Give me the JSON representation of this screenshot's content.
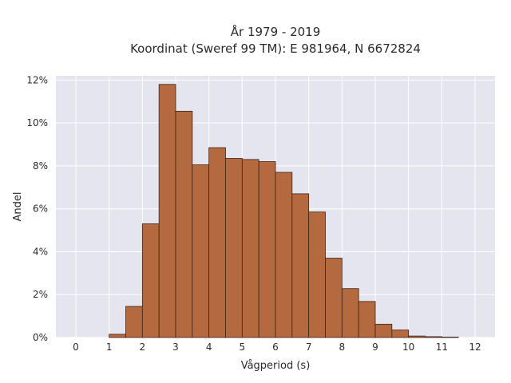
{
  "chart_data": {
    "type": "bar",
    "title": "År 1979 - 2019",
    "subtitle": "Koordinat (Sweref 99 TM): E 981964, N 6672824",
    "xlabel": "Vågperiod (s)",
    "ylabel": "Andel",
    "xlim": [
      -0.6,
      12.6
    ],
    "ylim": [
      0,
      0.122
    ],
    "x_ticks": [
      0,
      1,
      2,
      3,
      4,
      5,
      6,
      7,
      8,
      9,
      10,
      11,
      12
    ],
    "y_ticks": [
      0,
      0.02,
      0.04,
      0.06,
      0.08,
      0.1,
      0.12
    ],
    "y_tick_labels": [
      "0%",
      "2%",
      "4%",
      "6%",
      "8%",
      "10%",
      "12%"
    ],
    "grid": true,
    "bin_edges": [
      1.0,
      1.5,
      2.0,
      2.5,
      3.0,
      3.5,
      4.0,
      4.5,
      5.0,
      5.5,
      6.0,
      6.5,
      7.0,
      7.5,
      8.0,
      8.5,
      9.0,
      9.5,
      10.0,
      10.5,
      11.0,
      11.5
    ],
    "values": [
      0.0015,
      0.0145,
      0.053,
      0.118,
      0.1055,
      0.0805,
      0.0885,
      0.0835,
      0.083,
      0.082,
      0.077,
      0.067,
      0.0585,
      0.037,
      0.0228,
      0.0168,
      0.0062,
      0.0035,
      0.0007,
      0.0004,
      0.0002
    ],
    "colors": {
      "bar_fill": "#b5693f",
      "bar_stroke": "#3d2418",
      "plot_bg": "#e5e5ef",
      "grid": "#ffffff"
    }
  }
}
